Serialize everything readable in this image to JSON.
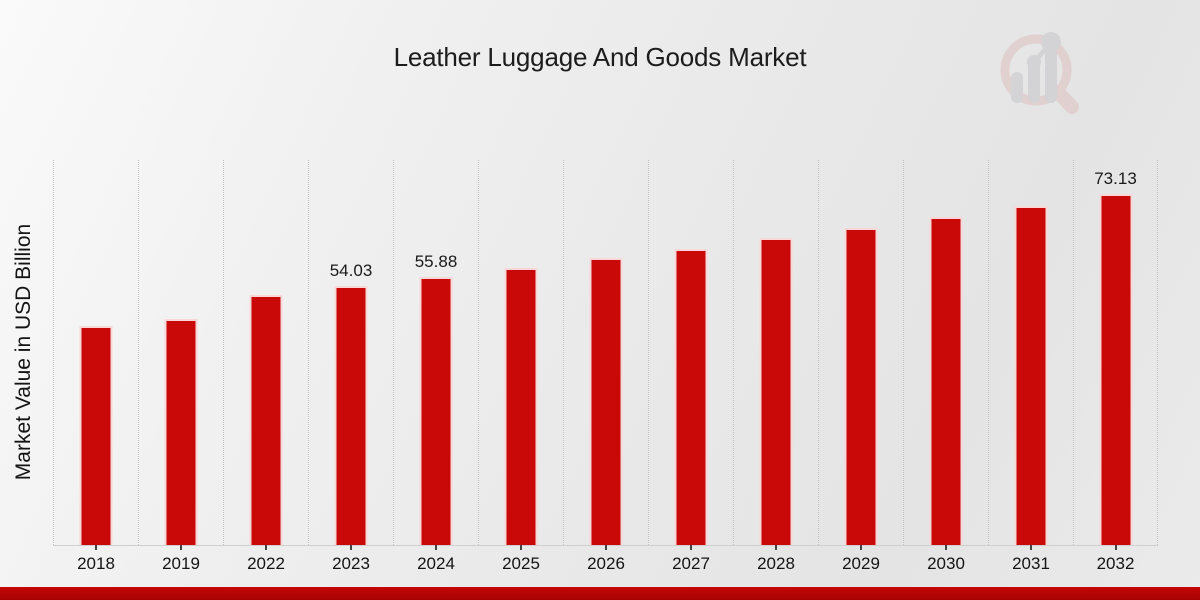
{
  "title": "Leather Luggage And Goods Market",
  "chart_data": {
    "type": "bar",
    "title": "Leather Luggage And Goods Market",
    "xlabel": "",
    "ylabel": "Market Value in USD Billion",
    "categories": [
      "2018",
      "2019",
      "2022",
      "2023",
      "2024",
      "2025",
      "2026",
      "2027",
      "2028",
      "2029",
      "2030",
      "2031",
      "2032"
    ],
    "values": [
      45.66,
      47.22,
      52.24,
      54.03,
      55.88,
      57.79,
      59.77,
      61.81,
      63.93,
      66.11,
      68.37,
      70.71,
      73.13
    ],
    "data_labels": [
      "",
      "",
      "",
      "54.03",
      "55.88",
      "",
      "",
      "",
      "",
      "",
      "",
      "",
      "73.13"
    ],
    "ylim": [
      0,
      80.3
    ],
    "grid": "vertical-dotted",
    "legend": "none",
    "bar_color": "#c90808",
    "bar_edge_color": "#fffcfc",
    "gridline_color": "#c3c3c3",
    "bottom_strip_color": "#b30404",
    "background": "light-gray-gradient"
  }
}
